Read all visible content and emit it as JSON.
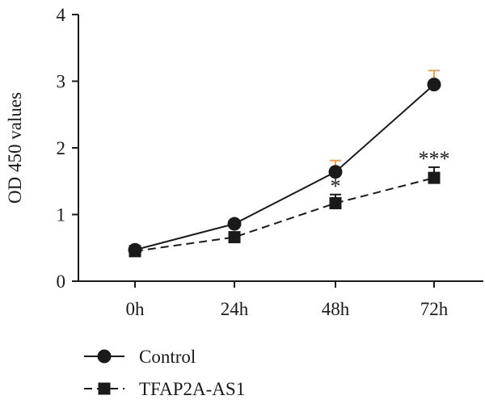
{
  "chart_data": {
    "type": "line",
    "categories": [
      "0h",
      "24h",
      "48h",
      "72h"
    ],
    "ylabel": "OD 450 values",
    "xlabel": "",
    "ylim": [
      0,
      4
    ],
    "yticks": [
      "0",
      "1",
      "2",
      "3",
      "4"
    ],
    "grid": false,
    "legend_position": "bottom-left",
    "series": [
      {
        "name": "Control",
        "values": [
          0.47,
          0.86,
          1.64,
          2.95
        ],
        "errors": [
          0.02,
          0.03,
          0.17,
          0.21
        ],
        "marker": "circle",
        "line_style": "solid",
        "error_bar_color": "#f0a050"
      },
      {
        "name": "TFAP2A-AS1",
        "values": [
          0.45,
          0.66,
          1.17,
          1.55
        ],
        "errors": [
          0.02,
          0.03,
          0.13,
          0.16
        ],
        "marker": "square",
        "line_style": "dashed",
        "error_bar_color": "#1a1a1a"
      }
    ],
    "annotations": [
      {
        "category": "48h",
        "series": "TFAP2A-AS1",
        "text": "*"
      },
      {
        "category": "72h",
        "series": "TFAP2A-AS1",
        "text": "***"
      }
    ]
  }
}
